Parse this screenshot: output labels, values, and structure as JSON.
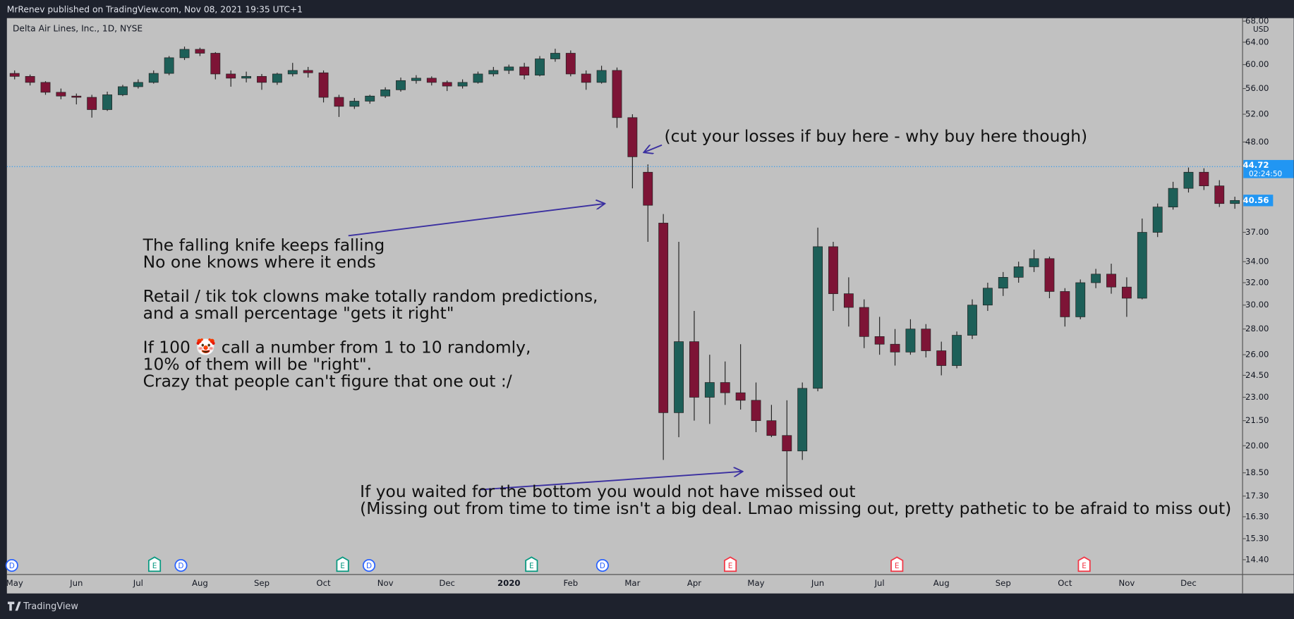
{
  "header": {
    "text": "MrRenev published on TradingView.com, Nov 08, 2021 19:35 UTC+1"
  },
  "footer": {
    "brand": "TradingView"
  },
  "chart_data": {
    "type": "candlestick",
    "title": "Delta Air Lines, Inc., 1D, NYSE",
    "currency": "USD",
    "log_scale": true,
    "grid": false,
    "up_color": "#1d5f58",
    "down_color": "#7d1436",
    "categories": [
      "May",
      null,
      null,
      null,
      "Jun",
      null,
      null,
      null,
      "Jul",
      null,
      null,
      null,
      "Aug",
      null,
      null,
      null,
      "Sep",
      null,
      null,
      null,
      "Oct",
      null,
      null,
      null,
      "Nov",
      null,
      null,
      null,
      "Dec",
      null,
      null,
      null,
      "2020",
      null,
      null,
      null,
      "Feb",
      null,
      null,
      null,
      "Mar",
      null,
      null,
      null,
      "Apr",
      null,
      null,
      null,
      "May",
      null,
      null,
      null,
      "Jun",
      null,
      null,
      null,
      "Jul",
      null,
      null,
      null,
      "Aug",
      null,
      null,
      null,
      "Sep",
      null,
      null,
      null,
      "Oct",
      null,
      null,
      null,
      "Nov",
      null,
      null,
      null,
      "Dec",
      null,
      null,
      null
    ],
    "open": [
      58.5,
      58,
      57,
      55.4,
      54.8,
      54.6,
      52.7,
      55,
      56.3,
      57,
      58.5,
      61.2,
      62.7,
      62,
      58.4,
      57.7,
      58,
      57,
      58.4,
      59,
      58.6,
      54.6,
      53.2,
      54,
      54.8,
      55.8,
      57.3,
      57.7,
      57,
      56.4,
      57,
      58.4,
      59,
      59.6,
      58.2,
      61,
      62,
      58.4,
      57,
      59,
      51.5,
      44,
      38,
      22,
      27,
      23,
      24,
      23.3,
      22.8,
      21.5,
      20.6,
      19.7,
      23.6,
      35.5,
      31,
      29.8,
      27.4,
      26.8,
      26.2,
      28,
      26.3,
      25.2,
      27.5,
      30,
      31.5,
      32.5,
      33.5,
      34.3,
      31.2,
      29,
      32,
      32.8,
      31.6,
      30.6,
      37,
      39.8,
      42,
      44,
      42.3,
      40.2
    ],
    "high": [
      59,
      58.3,
      57.2,
      56,
      55.2,
      55,
      55.5,
      56.6,
      57.5,
      59,
      61.5,
      63.2,
      63,
      62.2,
      59,
      58.8,
      58.4,
      58.6,
      60.3,
      59.6,
      59,
      55,
      54.5,
      55,
      56.2,
      57.8,
      58.2,
      58,
      57.3,
      57.5,
      58.8,
      59.6,
      60,
      60.3,
      61.5,
      62.8,
      62.5,
      59,
      59.8,
      59.5,
      52,
      45,
      39,
      36,
      29.5,
      26,
      25.5,
      26.8,
      24,
      22.5,
      22.8,
      24,
      37.5,
      36,
      32.5,
      30.5,
      29,
      28,
      28.8,
      28.4,
      27,
      27.8,
      30.5,
      32,
      33,
      34,
      35.2,
      34.5,
      31.5,
      32.3,
      33.3,
      33.8,
      32.5,
      38.5,
      40.2,
      42.8,
      44.6,
      44.5,
      43,
      41
    ],
    "low": [
      57.5,
      56.5,
      55,
      54.3,
      53.5,
      51.5,
      52.5,
      54.8,
      56,
      56.8,
      58.2,
      60.8,
      61.5,
      57.5,
      56.3,
      57,
      55.8,
      56.6,
      58,
      57.8,
      53.8,
      51.6,
      52.8,
      53.6,
      54.5,
      55.5,
      56.8,
      56.5,
      55.6,
      56,
      56.8,
      58,
      58.4,
      57.5,
      58,
      60.5,
      58,
      55.8,
      56.8,
      50,
      42,
      36,
      19.2,
      20.5,
      21.5,
      21.3,
      22.5,
      22.2,
      20.8,
      20.5,
      17.6,
      19.2,
      23.4,
      29.5,
      28.2,
      26.5,
      26,
      25.2,
      26,
      25.8,
      24.5,
      25,
      27.2,
      29.5,
      30.8,
      32,
      33,
      30.6,
      28.2,
      28.8,
      31.5,
      31,
      29,
      30.5,
      36.5,
      39.5,
      41.5,
      41.8,
      39.8,
      39.6
    ],
    "close": [
      58,
      57,
      55.4,
      54.8,
      54.6,
      52.7,
      55,
      56.3,
      57,
      58.5,
      61.2,
      62.7,
      62,
      58.4,
      57.7,
      58,
      57,
      58.4,
      59,
      58.6,
      54.6,
      53.2,
      54,
      54.8,
      55.8,
      57.3,
      57.7,
      57,
      56.4,
      57,
      58.4,
      59,
      59.6,
      58.2,
      61,
      62,
      58.4,
      57,
      59,
      51.5,
      46,
      40,
      22,
      27,
      23,
      24,
      23.3,
      22.8,
      21.5,
      20.6,
      19.7,
      23.6,
      35.5,
      31,
      29.8,
      27.4,
      26.8,
      26.2,
      28,
      26.3,
      25.2,
      27.5,
      30,
      31.5,
      32.5,
      33.5,
      34.3,
      31.2,
      29,
      32,
      32.8,
      31.6,
      30.6,
      37,
      39.8,
      42,
      44,
      42.3,
      40.2,
      40.56
    ],
    "ylim": [
      13.8,
      68.6
    ],
    "yticks": [
      {
        "value": 68,
        "label": "68.00"
      },
      {
        "value": 64,
        "label": "64.00"
      },
      {
        "value": 60,
        "label": "60.00"
      },
      {
        "value": 56,
        "label": "56.00"
      },
      {
        "value": 52,
        "label": "52.00"
      },
      {
        "value": 48,
        "label": "48.00"
      },
      {
        "value": 37,
        "label": "37.00"
      },
      {
        "value": 34,
        "label": "34.00"
      },
      {
        "value": 32,
        "label": "32.00"
      },
      {
        "value": 30,
        "label": "30.00"
      },
      {
        "value": 28,
        "label": "28.00"
      },
      {
        "value": 26,
        "label": "26.00"
      },
      {
        "value": 24.5,
        "label": "24.50"
      },
      {
        "value": 23,
        "label": "23.00"
      },
      {
        "value": 21.5,
        "label": "21.50"
      },
      {
        "value": 20,
        "label": "20.00"
      },
      {
        "value": 18.5,
        "label": "18.50"
      },
      {
        "value": 17.3,
        "label": "17.30"
      },
      {
        "value": 16.3,
        "label": "16.30"
      },
      {
        "value": 15.3,
        "label": "15.30"
      },
      {
        "value": 14.4,
        "label": "14.40"
      }
    ],
    "price_line": {
      "value": 44.72,
      "countdown": "02:24:50",
      "color": "#2196f3"
    },
    "last_price": 40.56,
    "events": [
      {
        "label": "D",
        "color": "#2962ff"
      },
      {
        "label": "E",
        "color": "#089981"
      },
      {
        "label": "D",
        "color": "#2962ff"
      },
      {
        "label": "E",
        "color": "#089981"
      },
      {
        "label": "D",
        "color": "#2962ff"
      },
      {
        "label": "E",
        "color": "#089981"
      },
      {
        "label": "D",
        "color": "#2962ff"
      },
      {
        "label": "E",
        "color": "#f23645"
      },
      {
        "label": "E",
        "color": "#f23645"
      },
      {
        "label": "E",
        "color": "#f23645"
      }
    ],
    "annotations": [
      {
        "lines": [
          "The falling knife keeps falling",
          "No one knows where it ends"
        ]
      },
      {
        "lines": [
          "Retail / tik tok clowns make totally random predictions,",
          "and a small percentage \"gets it right\""
        ]
      },
      {
        "lines": [
          "If 100 🤡 call a number from 1 to 10 randomly,",
          "10% of them will be \"right\".",
          "Crazy that people can't figure that one out :/"
        ]
      },
      {
        "lines": [
          "(cut your losses if buy here - why buy here though)"
        ]
      },
      {
        "lines": [
          "If you waited for the bottom you would not have missed out",
          "(Missing out from time to time isn't a big deal. Lmao missing out, pretty pathetic to be afraid to miss out)"
        ]
      }
    ]
  }
}
